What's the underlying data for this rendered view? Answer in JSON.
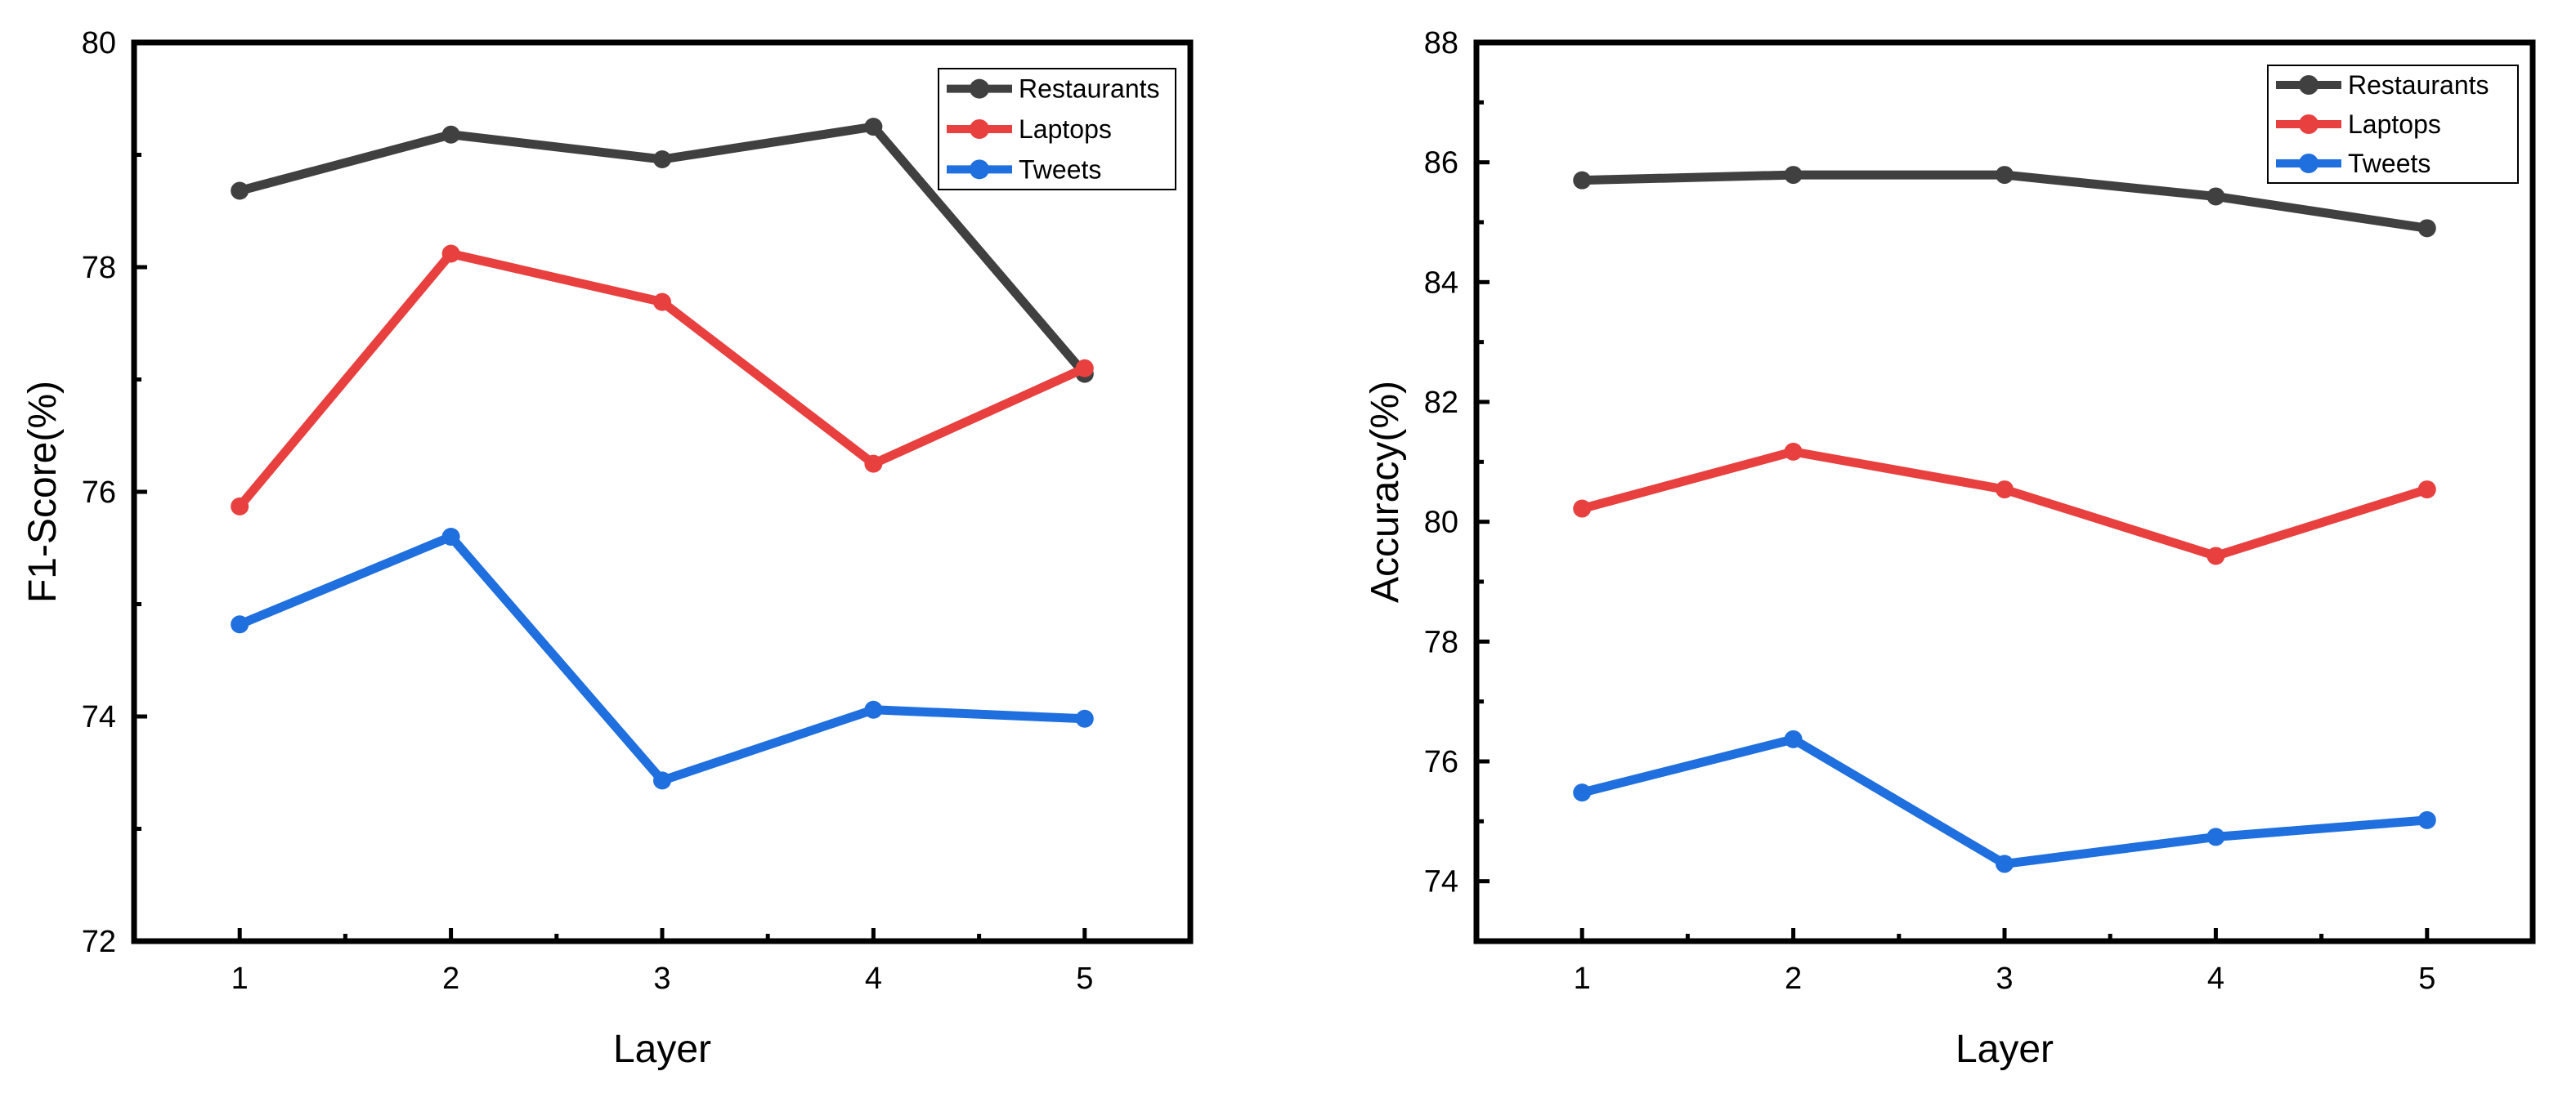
{
  "chart_data": [
    {
      "type": "line",
      "title": "",
      "xlabel": "Layer",
      "ylabel": "F1-Score(%)",
      "categories": [
        1,
        2,
        3,
        4,
        5
      ],
      "xlim": [
        0.5,
        5.5
      ],
      "ylim": [
        72,
        80
      ],
      "yticks": [
        72,
        74,
        76,
        78,
        80
      ],
      "legend_position": "top-right",
      "grid": false,
      "series": [
        {
          "name": "Restaurants",
          "color": "#404040",
          "values": [
            78.68,
            79.18,
            78.96,
            79.25,
            77.05
          ]
        },
        {
          "name": "Laptops",
          "color": "#e8403f",
          "values": [
            75.87,
            78.12,
            77.69,
            76.25,
            77.1
          ]
        },
        {
          "name": "Tweets",
          "color": "#1f6fde",
          "values": [
            74.82,
            75.6,
            73.43,
            74.06,
            73.98
          ]
        }
      ]
    },
    {
      "type": "line",
      "title": "",
      "xlabel": "Layer",
      "ylabel": "Accuracy(%)",
      "categories": [
        1,
        2,
        3,
        4,
        5
      ],
      "xlim": [
        0.5,
        5.5
      ],
      "ylim": [
        73,
        88
      ],
      "yticks": [
        74,
        76,
        78,
        80,
        82,
        84,
        86,
        88
      ],
      "legend_position": "top-right",
      "grid": false,
      "series": [
        {
          "name": "Restaurants",
          "color": "#404040",
          "values": [
            85.7,
            85.79,
            85.79,
            85.43,
            84.9
          ]
        },
        {
          "name": "Laptops",
          "color": "#e8403f",
          "values": [
            80.22,
            81.17,
            80.54,
            79.43,
            80.54
          ]
        },
        {
          "name": "Tweets",
          "color": "#1f6fde",
          "values": [
            75.48,
            76.37,
            74.29,
            74.74,
            75.02
          ]
        }
      ]
    }
  ]
}
